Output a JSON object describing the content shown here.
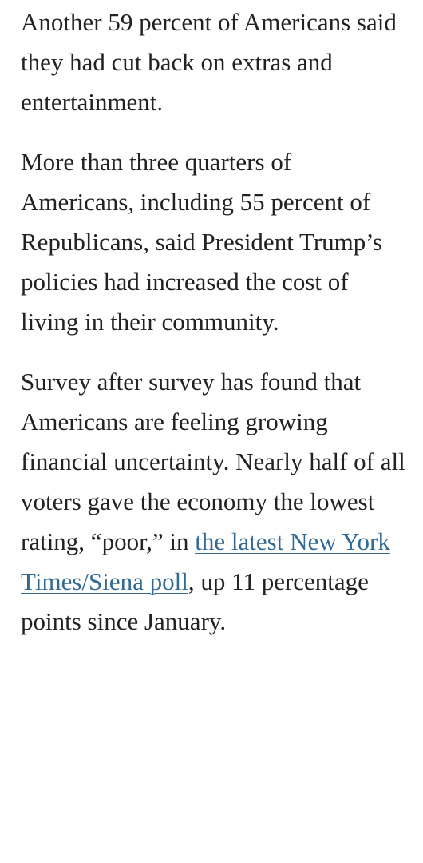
{
  "article": {
    "paragraphs": [
      {
        "text": "Another 59 percent of Americans said they had cut back on extras and entertainment."
      },
      {
        "text": "More than three quarters of Americans, including 55 percent of Republicans, said President Trump’s policies had increased the cost of living in their community."
      },
      {
        "before": "Survey after survey has found that Americans are feeling growing financial uncertainty. Nearly half of all voters gave the economy the lowest rating, “poor,” in ",
        "link": "the latest New York Times/Siena poll",
        "after": ", up 11 percentage points since January."
      }
    ]
  }
}
